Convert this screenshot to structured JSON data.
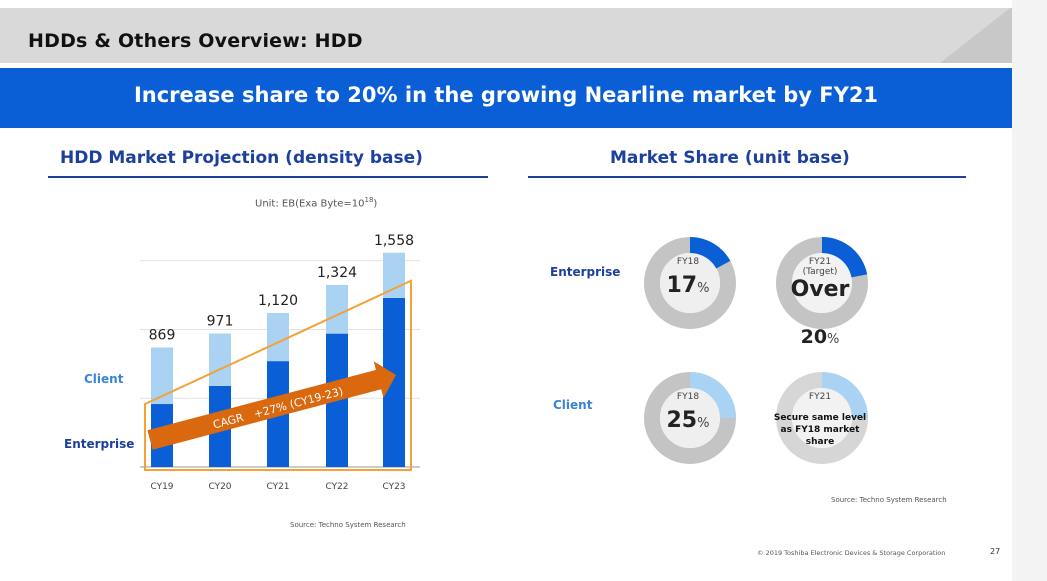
{
  "page_title": "HDDs & Others Overview: HDD",
  "banner": "Increase share to 20% in the growing Nearline market by FY21",
  "left_section": {
    "title": "HDD Market Projection (density base)",
    "unit_prefix": "Unit: EB(Exa Byte=10",
    "unit_exp": "18",
    "unit_suffix": ")",
    "label_client": "Client",
    "label_enterprise": "Enterprise",
    "cagr_label": "CAGR　+27% (CY19-23)",
    "source": "Source: Techno System Research"
  },
  "chart_data": {
    "type": "bar",
    "stacked": true,
    "categories": [
      "CY19",
      "CY20",
      "CY21",
      "CY22",
      "CY23"
    ],
    "totals": [
      869,
      971,
      1120,
      1324,
      1558
    ],
    "total_labels": [
      "869",
      "971",
      "1,120",
      "1,324",
      "1,558"
    ],
    "series": [
      {
        "name": "Enterprise",
        "values": [
          458,
          590,
          770,
          970,
          1230
        ]
      },
      {
        "name": "Client",
        "values": [
          411,
          381,
          350,
          354,
          328
        ]
      }
    ],
    "ylim": [
      0,
      1600
    ],
    "annotation": "CAGR +27% (CY19-23)",
    "colors": {
      "enterprise": "#0a5fd6",
      "client": "#a9d2f3",
      "highlight": "#f4a236",
      "arrow": "#d9680e"
    }
  },
  "right_section": {
    "title": "Market Share (unit base)",
    "row_enterprise": "Enterprise",
    "row_client": "Client",
    "source": "Source: Techno System Research",
    "donuts": [
      {
        "fy": "FY18",
        "sub": "",
        "value": "17",
        "pct_sign": "%",
        "share": 0.17,
        "color": "#0a5fd6"
      },
      {
        "fy": "FY21",
        "sub": "(Target)",
        "value": "Over",
        "value2": "20",
        "pct_sign": "%",
        "share": 0.22,
        "color": "#0a5fd6"
      },
      {
        "fy": "FY18",
        "sub": "",
        "value": "25",
        "pct_sign": "%",
        "share": 0.25,
        "color": "#a9d2f3"
      },
      {
        "fy": "FY21",
        "desc": [
          "Secure same level",
          "as FY18 market",
          "share"
        ],
        "share": 0.25,
        "color": "#a9d2f3"
      }
    ]
  },
  "footer": "© 2019 Toshiba Electronic Devices & Storage Corporation",
  "page_number": "27"
}
